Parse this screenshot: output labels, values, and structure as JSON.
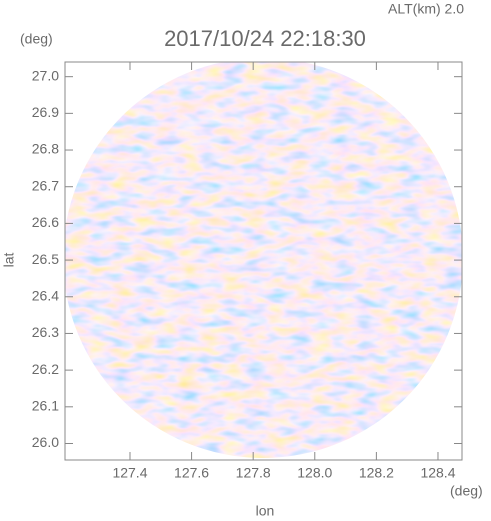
{
  "chart_data": {
    "type": "radar",
    "title": "2017/10/24 22:18:30",
    "subtitle": "ALT(km) 2.0",
    "x_label": "lon",
    "y_label": "lat",
    "x_unit": "(deg)",
    "y_unit": "(deg)",
    "xlim": [
      127.189,
      128.478
    ],
    "ylim": [
      25.955,
      27.04
    ],
    "xticks": [
      127.4,
      127.6,
      127.8,
      {
        "value": 128.0,
        "label": "128.0"
      },
      128.2,
      128.4
    ],
    "yticks": [
      {
        "value": 26.0,
        "label": "26.0"
      },
      26.1,
      26.2,
      26.3,
      26.4,
      26.5,
      26.6,
      26.7,
      26.8,
      26.9,
      {
        "value": 27.0,
        "label": "27.0"
      }
    ]
  }
}
